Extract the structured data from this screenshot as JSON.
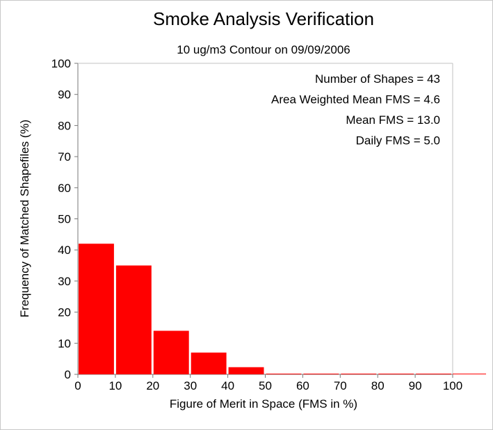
{
  "chart_data": {
    "type": "bar",
    "title": "Smoke Analysis Verification",
    "subtitle": "10 ug/m3 Contour on 09/09/2006",
    "xlabel": "Figure of Merit in Space (FMS in %)",
    "ylabel": "Frequency of Matched Shapefiles (%)",
    "bin_width": 10,
    "bins": [
      {
        "start": 0,
        "end": 10,
        "value": 42
      },
      {
        "start": 10,
        "end": 20,
        "value": 35
      },
      {
        "start": 20,
        "end": 30,
        "value": 14
      },
      {
        "start": 30,
        "end": 40,
        "value": 7
      },
      {
        "start": 40,
        "end": 50,
        "value": 2.3
      },
      {
        "start": 50,
        "end": 60,
        "value": 0
      },
      {
        "start": 60,
        "end": 70,
        "value": 0
      },
      {
        "start": 70,
        "end": 80,
        "value": 0
      },
      {
        "start": 80,
        "end": 90,
        "value": 0
      },
      {
        "start": 90,
        "end": 100,
        "value": 0
      }
    ],
    "xlim": [
      0,
      100
    ],
    "ylim": [
      0,
      100
    ],
    "xticks": [
      0,
      10,
      20,
      30,
      40,
      50,
      60,
      70,
      80,
      90,
      100
    ],
    "yticks": [
      0,
      10,
      20,
      30,
      40,
      50,
      60,
      70,
      80,
      90,
      100
    ],
    "grid": false,
    "bar_color": "#ff0000",
    "annotations": [
      "Number of Shapes = 43",
      "Area Weighted Mean FMS = 4.6",
      "Mean FMS = 13.0",
      "Daily FMS = 5.0"
    ]
  }
}
